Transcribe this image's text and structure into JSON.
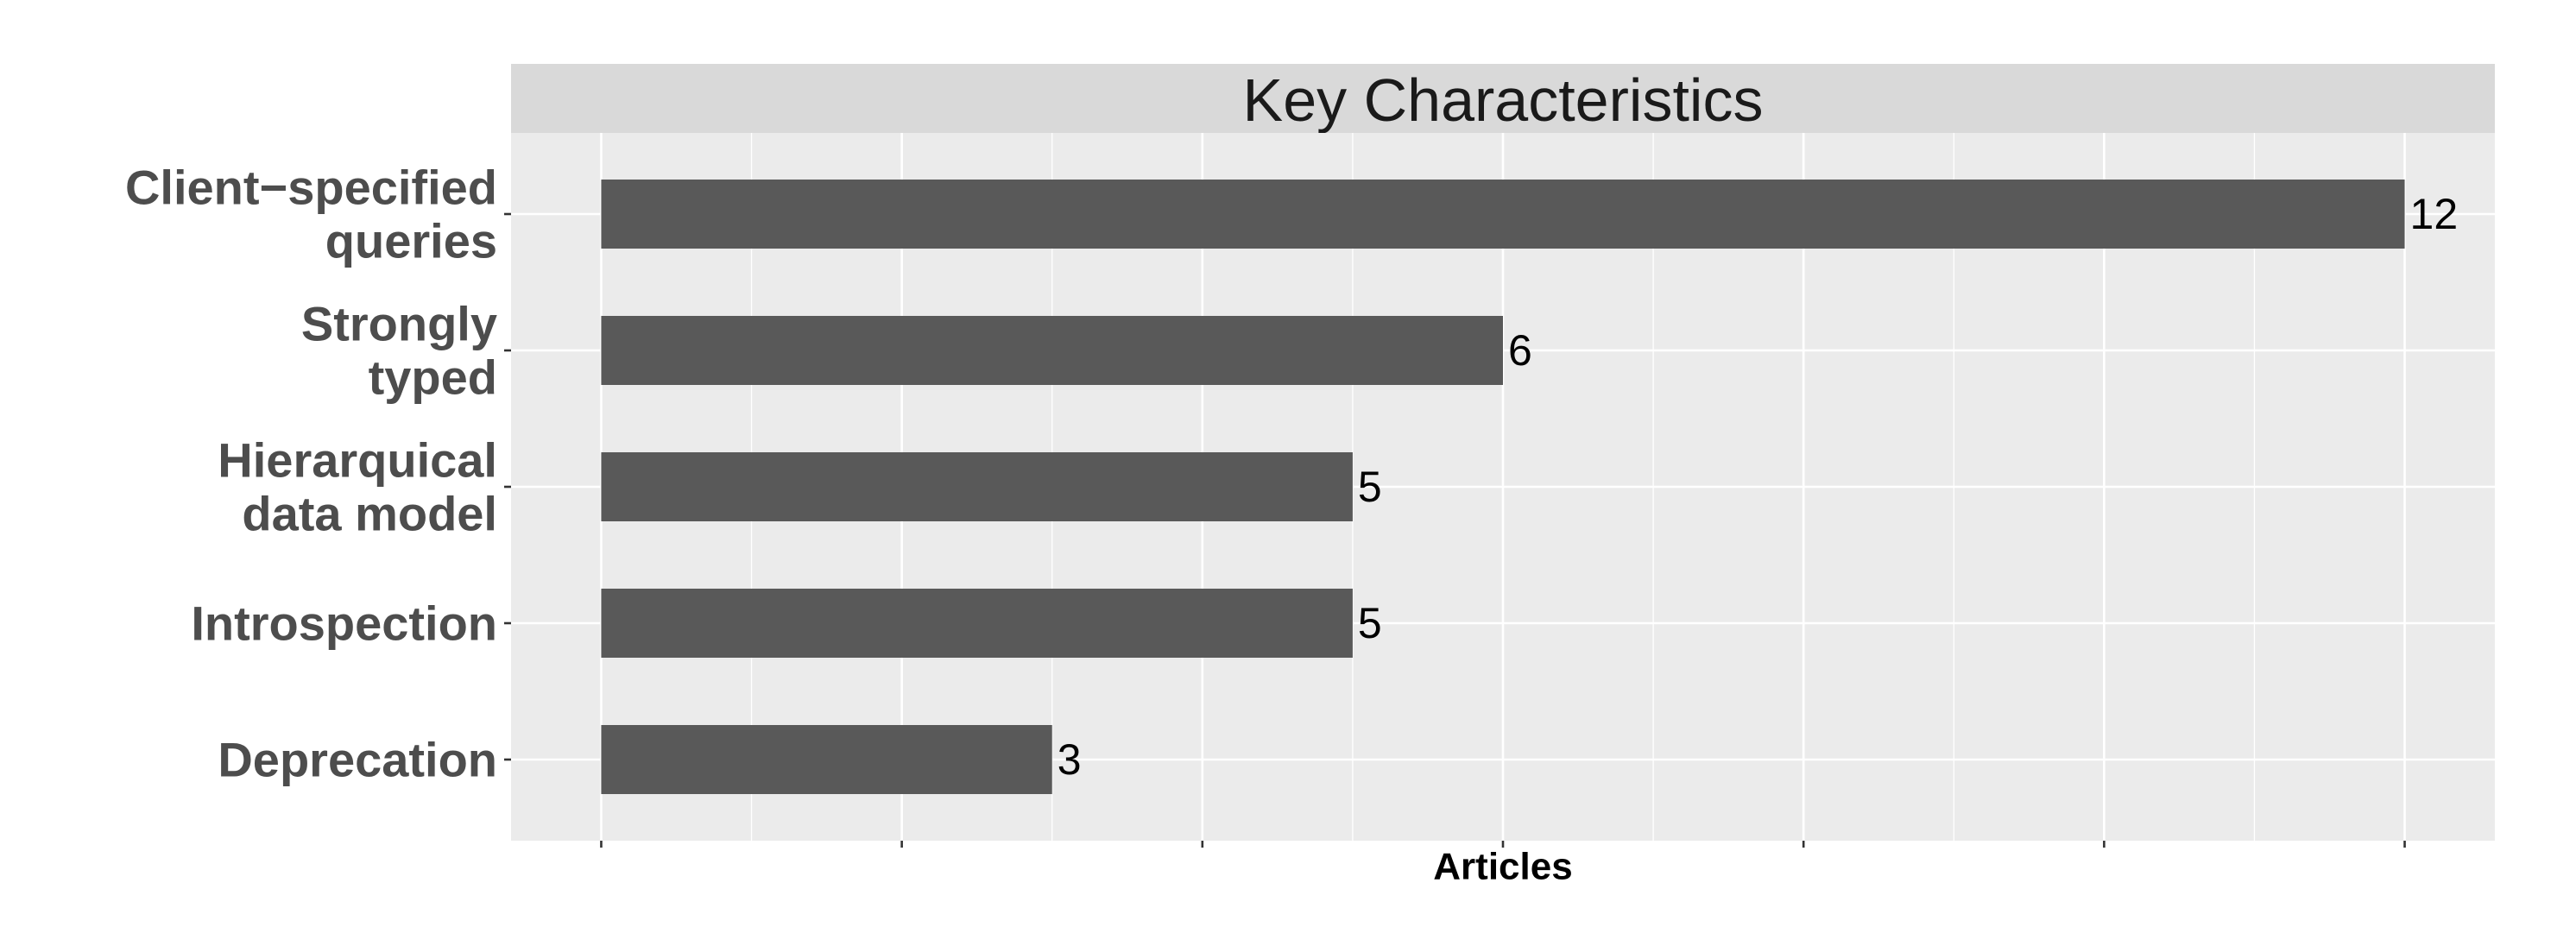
{
  "chart_data": {
    "type": "bar",
    "orientation": "horizontal",
    "title": "Key Characteristics",
    "xlabel": "Articles",
    "ylabel": "",
    "categories": [
      [
        "Client−specified",
        "queries"
      ],
      [
        "Strongly",
        "typed"
      ],
      [
        "Hierarquical",
        "data model"
      ],
      [
        "Introspection"
      ],
      [
        "Deprecation"
      ]
    ],
    "values": [
      12,
      6,
      5,
      5,
      3
    ],
    "data_labels": [
      "12",
      "6",
      "5",
      "5",
      "3"
    ],
    "xlim": [
      -0.6,
      12.6
    ],
    "bar_color": "#595959",
    "panel_color": "#ebebeb",
    "strip_color": "#d9d9d9",
    "grid": true,
    "x_tick_labels_shown": false
  }
}
